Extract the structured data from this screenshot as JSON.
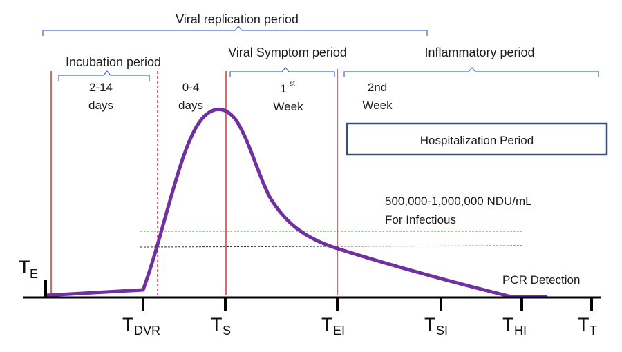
{
  "periods": {
    "viral_replication": "Viral replication  period",
    "incubation": "Incubation period",
    "viral_symptom": "Viral Symptom  period",
    "inflammatory": "Inflammatory period"
  },
  "durations": {
    "incubation_line1": "2-14",
    "incubation_line2": "days",
    "presymptom_line1": "0-4",
    "presymptom_line2": "days",
    "first_week_num": "1",
    "first_week_sup": "st",
    "first_week_word": "Week",
    "second_week_line1": "2nd",
    "second_week_line2": "Week"
  },
  "hospitalization_label": "Hospitalization Period",
  "threshold": {
    "line1": "500,000-1,000,000 NDU/mL",
    "line2": "For Infectious"
  },
  "pcr_label": "PCR Detection",
  "time_points": {
    "te": {
      "main": "T",
      "sub": "E"
    },
    "tdvr": {
      "main": "T",
      "sub": "DVR"
    },
    "ts": {
      "main": "T",
      "sub": "S"
    },
    "tei": {
      "main": "T",
      "sub": "EI"
    },
    "tsi": {
      "main": "T",
      "sub": "SI"
    },
    "thi": {
      "main": "T",
      "sub": "HI"
    },
    "tt": {
      "main": "T",
      "sub": "T"
    }
  },
  "colors": {
    "curve": "#7030a0",
    "markers": "#e03030",
    "braces": "#4472c4",
    "box_border": "#2f4f8f",
    "threshold_green": "#33aa33",
    "threshold_dark": "#333333",
    "axis": "#000000"
  }
}
